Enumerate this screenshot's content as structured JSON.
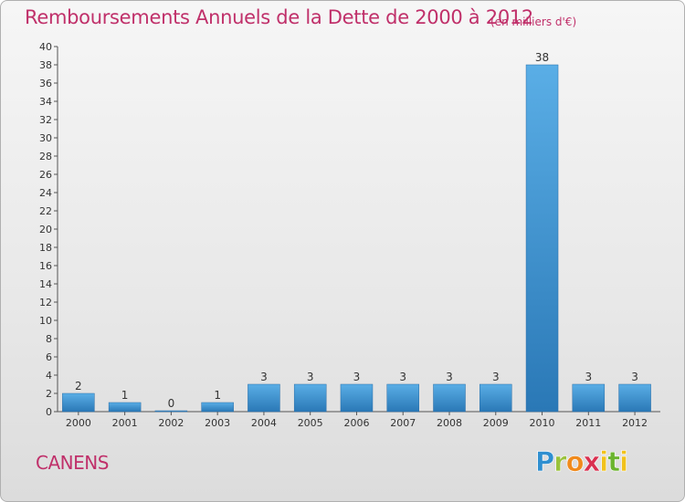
{
  "header": {
    "title": "Remboursements Annuels de la Dette de 2000 à 2012",
    "units": "(en milliers d'€)"
  },
  "footer": {
    "commune": "CANENS",
    "logo_text": "Proxiti"
  },
  "colors": {
    "title": "#c0306a",
    "bar_top": "#5aaee6",
    "bar_bottom": "#2a78b6",
    "logo_p": "#2f8fd0",
    "logo_r": "#9ac23c",
    "logo_o": "#f08a1c",
    "logo_x": "#d9304f",
    "logo_i": "#f1c21b",
    "logo_t": "#6bb42e"
  },
  "chart_data": {
    "type": "bar",
    "title": "Remboursements Annuels de la Dette de 2000 à 2012",
    "categories": [
      "2000",
      "2001",
      "2002",
      "2003",
      "2004",
      "2005",
      "2006",
      "2007",
      "2008",
      "2009",
      "2010",
      "2011",
      "2012"
    ],
    "values": [
      2,
      1,
      0,
      1,
      3,
      3,
      3,
      3,
      3,
      3,
      38,
      3,
      3
    ],
    "value_labels": [
      "2",
      "1",
      "0",
      "1",
      "3",
      "3",
      "3",
      "3",
      "3",
      "3",
      "38",
      "3",
      "3"
    ],
    "ylim": [
      0,
      40
    ],
    "yticks": [
      0,
      2,
      4,
      6,
      8,
      10,
      12,
      14,
      16,
      18,
      20,
      22,
      24,
      26,
      28,
      30,
      32,
      34,
      36,
      38,
      40
    ],
    "grid": false,
    "legend": "none"
  }
}
